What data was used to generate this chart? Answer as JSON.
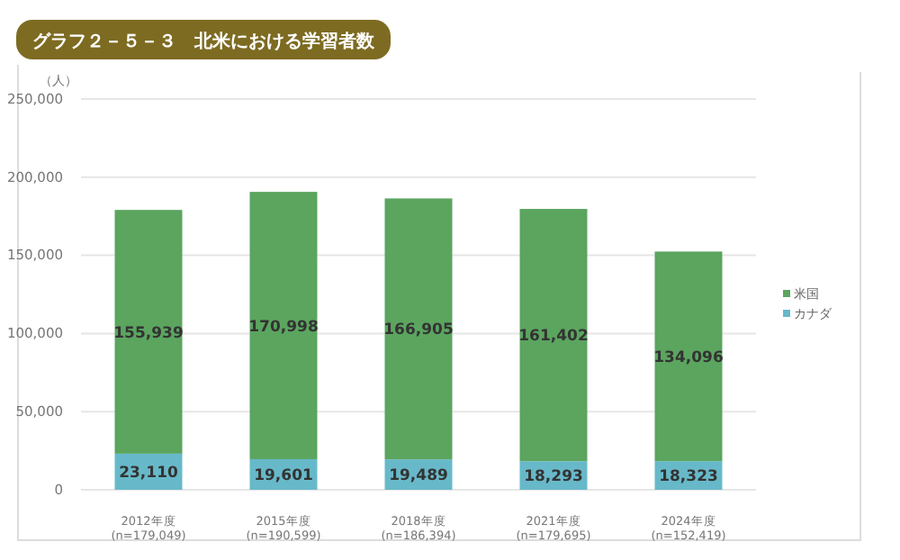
{
  "chart_data": {
    "type": "bar",
    "title": "グラフ２－５－３　北米における学習者数",
    "ylabel": "（人）",
    "categories": [
      "2012年度\n(n=179,049)",
      "2015年度\n(n=190,599)",
      "2018年度\n(n=186,394)",
      "2021年度\n(n=179,695)",
      "2024年度\n(n=152,419)"
    ],
    "series": [
      {
        "name": "カナダ",
        "color": "#67b9c9",
        "values": [
          23110,
          19601,
          19489,
          18293,
          18323
        ],
        "value_labels": [
          "23,110",
          "19,601",
          "19,489",
          "18,293",
          "18,323"
        ]
      },
      {
        "name": "米国",
        "color": "#5ba55f",
        "values": [
          155939,
          170998,
          166905,
          161402,
          134096
        ],
        "value_labels": [
          "155,939",
          "170,998",
          "166,905",
          "161,402",
          "134,096"
        ]
      }
    ],
    "stacked": true,
    "ylim": [
      0,
      250000
    ],
    "yticks": [
      0,
      {
        "value": 50000,
        "label": "50,000"
      },
      {
        "value": 100000,
        "label": "100,000"
      },
      {
        "value": 150000,
        "label": "150,000"
      },
      {
        "value": 200000,
        "label": "200,000"
      },
      {
        "value": 250000,
        "label": "250,000"
      }
    ],
    "grid": "y",
    "legend": "right"
  }
}
